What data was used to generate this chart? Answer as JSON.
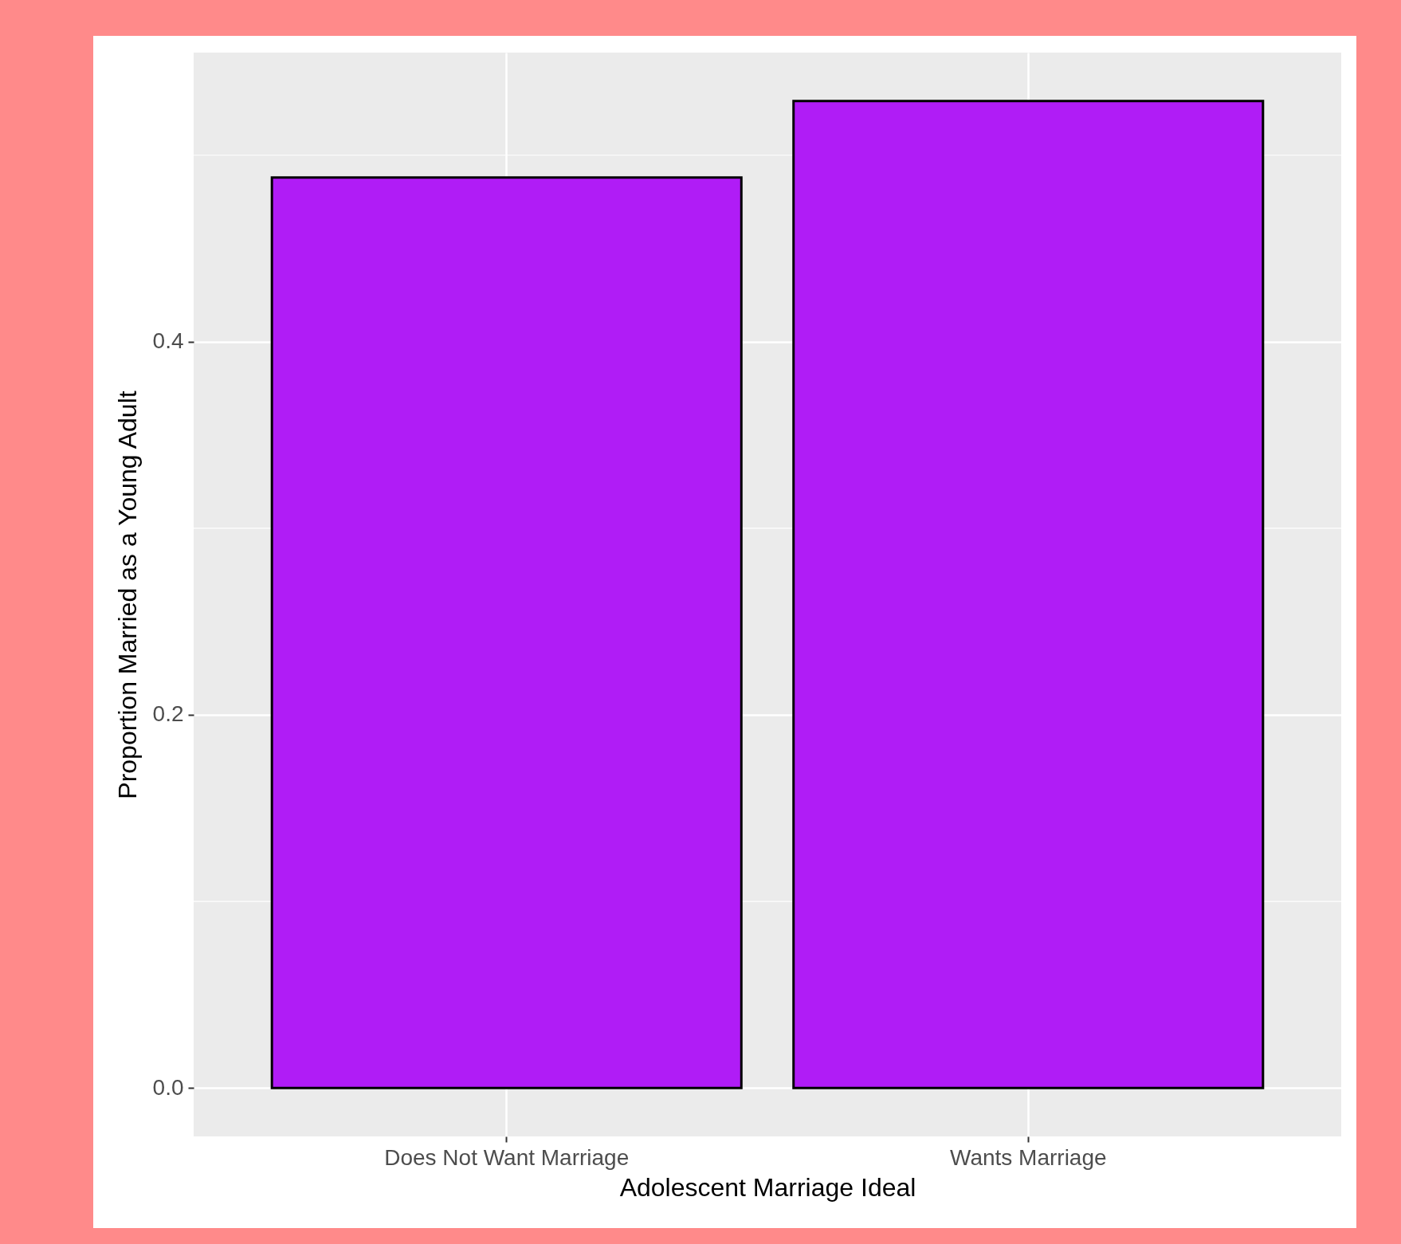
{
  "chart_data": {
    "type": "bar",
    "xlabel": "Adolescent Marriage Ideal",
    "ylabel": "Proportion Married as a Young Adult",
    "categories": [
      "Does Not Want Marriage",
      "Wants Marriage"
    ],
    "values": [
      0.488,
      0.529
    ],
    "color": "#b01cf6",
    "ylim": [
      -0.026,
      0.555
    ],
    "yticks": [
      {
        "value": 0,
        "label": "0.0"
      },
      {
        "value": 0.2,
        "label": "0.2"
      },
      {
        "value": 0.4,
        "label": "0.4"
      }
    ],
    "grid": true
  }
}
